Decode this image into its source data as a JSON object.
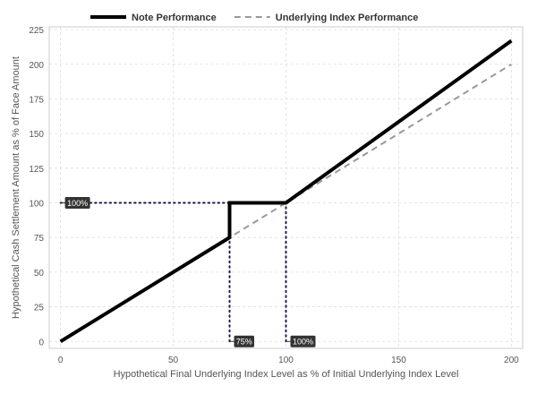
{
  "chart_data": {
    "type": "line",
    "xlabel": "Hypothetical Final Underlying Index Level as % of Initial Underlying Index Level",
    "ylabel": "Hypothetical Cash Settlement Amount as % of Face Amount",
    "xlim": [
      -5,
      205
    ],
    "ylim": [
      -5,
      227
    ],
    "x_ticks": [
      0,
      50,
      100,
      150,
      200
    ],
    "y_ticks": [
      0,
      25,
      50,
      75,
      100,
      125,
      150,
      175,
      200,
      225
    ],
    "grid": true,
    "legend_position": "top",
    "series": [
      {
        "name": "Note Performance",
        "style": "solid",
        "color": "#000000",
        "points": [
          [
            0,
            0
          ],
          [
            75,
            75
          ],
          [
            75,
            100
          ],
          [
            100,
            100
          ],
          [
            200,
            217
          ]
        ]
      },
      {
        "name": "Underlying Index Performance",
        "style": "dashed",
        "color": "#999999",
        "points": [
          [
            0,
            0
          ],
          [
            200,
            200
          ]
        ]
      }
    ],
    "reference_lines": [
      {
        "orientation": "horizontal",
        "points": [
          [
            0,
            100
          ],
          [
            75,
            100
          ]
        ]
      },
      {
        "orientation": "vertical",
        "points": [
          [
            75,
            0
          ],
          [
            75,
            100
          ]
        ]
      },
      {
        "orientation": "vertical",
        "points": [
          [
            100,
            0
          ],
          [
            100,
            100
          ]
        ]
      }
    ],
    "annotations": [
      {
        "text": "100%",
        "x": 0,
        "y": 100
      },
      {
        "text": "75%",
        "x": 75,
        "y": 0
      },
      {
        "text": "100%",
        "x": 100,
        "y": 0
      }
    ],
    "colors": {
      "grid": "#dddddd",
      "panel_border": "#cccccc",
      "reference_line": "#1a1a4d",
      "callout_bg": "#333333"
    }
  }
}
